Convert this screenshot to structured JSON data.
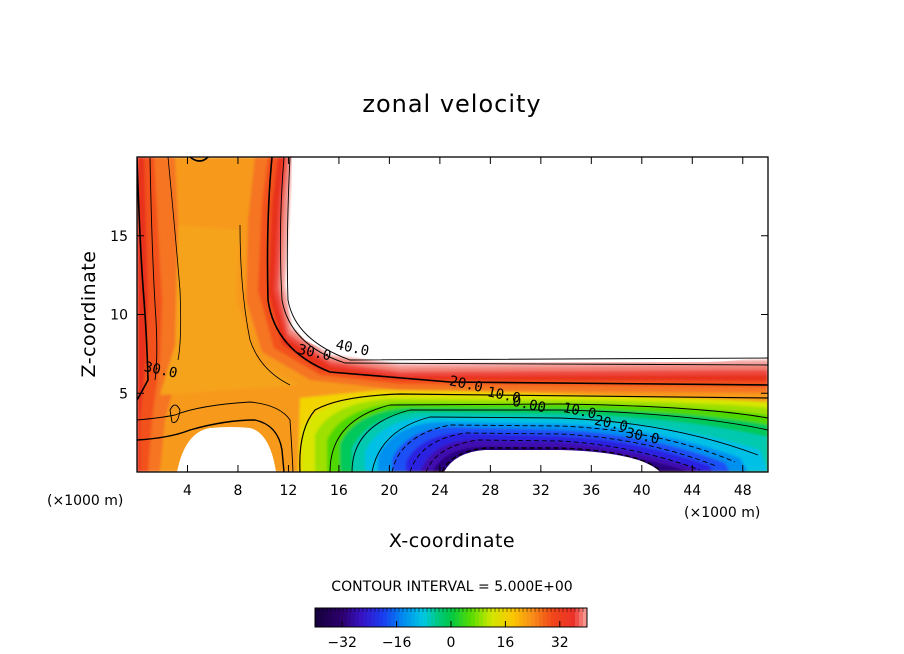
{
  "chart_data": {
    "type": "contour",
    "title": "zonal velocity",
    "xlabel": "X-coordinate",
    "ylabel": "Z-coordinate",
    "x_unit_label": "(×1000 m)",
    "x_unit_label_right": "(×1000 m)",
    "xlim": [
      0,
      50
    ],
    "ylim": [
      0,
      20
    ],
    "xticks": [
      4,
      8,
      12,
      16,
      20,
      24,
      28,
      32,
      36,
      40,
      44,
      48
    ],
    "yticks": [
      5,
      10,
      15
    ],
    "contour_interval_text": "CONTOUR INTERVAL = 5.000E+00",
    "contour_interval": 5.0,
    "contour_labels": [
      {
        "text": "40.0",
        "x": 17.0,
        "y": 7.6
      },
      {
        "text": "30.0",
        "x": 14.0,
        "y": 7.3
      },
      {
        "text": "30.0",
        "x": 1.8,
        "y": 6.2
      },
      {
        "text": "20.0",
        "x": 26.0,
        "y": 5.3
      },
      {
        "text": "10.0",
        "x": 29.0,
        "y": 4.6
      },
      {
        "text": "0.00",
        "x": 31.0,
        "y": 4.0
      },
      {
        "text": "10.0",
        "x": 35.0,
        "y": 3.6
      },
      {
        "text": "20.0",
        "x": 37.5,
        "y": 2.8
      },
      {
        "text": "30.0",
        "x": 40.0,
        "y": 2.0
      }
    ],
    "notes": "Filled contours of zonal velocity; colours from dark purple (negative, about -40) to pink/red (positive, about +40). Blank (white) regions exceed the colour range. Negative contours dashed.",
    "colorbar": {
      "ticks": [
        -32,
        -16,
        0,
        16,
        32
      ],
      "tick_labels": [
        "−32",
        "−16",
        "0",
        "16",
        "32"
      ],
      "range": [
        -40,
        40
      ]
    }
  }
}
